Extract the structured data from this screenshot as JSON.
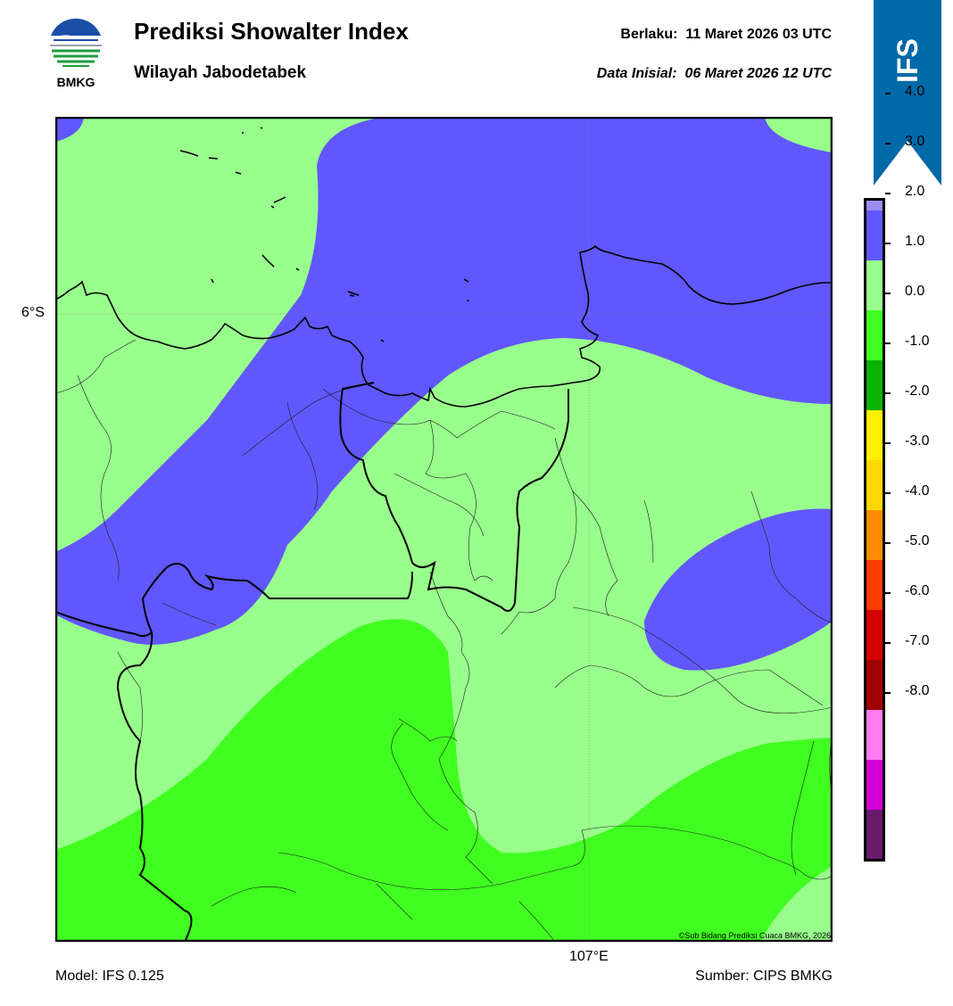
{
  "header": {
    "title": "Prediksi Showalter Index",
    "subtitle": "Wilayah Jabodetabek",
    "valid_label": "Berlaku:",
    "valid_time": "11 Maret 2026 03 UTC",
    "init_label": "Data Inisial:",
    "init_time": "06 Maret 2026 12 UTC"
  },
  "logo": {
    "text": "BMKG",
    "icon": "bmkg-logo"
  },
  "ribbon": {
    "text": "IFS",
    "color": "#0069a8"
  },
  "map": {
    "lat_label": "6°S",
    "lon_label": "107°E",
    "copyright": "©Sub Bidang Prediksi Cuaca BMKG, 2026"
  },
  "colorbar": {
    "labels": [
      "4.0",
      "3.0",
      "2.0",
      "1.0",
      "0.0",
      "-1.0",
      "-2.0",
      "-3.0",
      "-4.0",
      "-5.0",
      "-6.0",
      "-7.0",
      "-8.0"
    ],
    "colors": [
      "#ffffff",
      "#e6e6fa",
      "#9c8cf0",
      "#6157ff",
      "#99ff8c",
      "#40ff20",
      "#0bb400",
      "#fff000",
      "#ffd700",
      "#ff8c00",
      "#ff3c00",
      "#d40000",
      "#a00000",
      "#ff7cf0",
      "#d200d2",
      "#6a1a6a"
    ]
  },
  "footer": {
    "model": "Model: IFS 0.125",
    "source": "Sumber: CIPS BMKG"
  }
}
